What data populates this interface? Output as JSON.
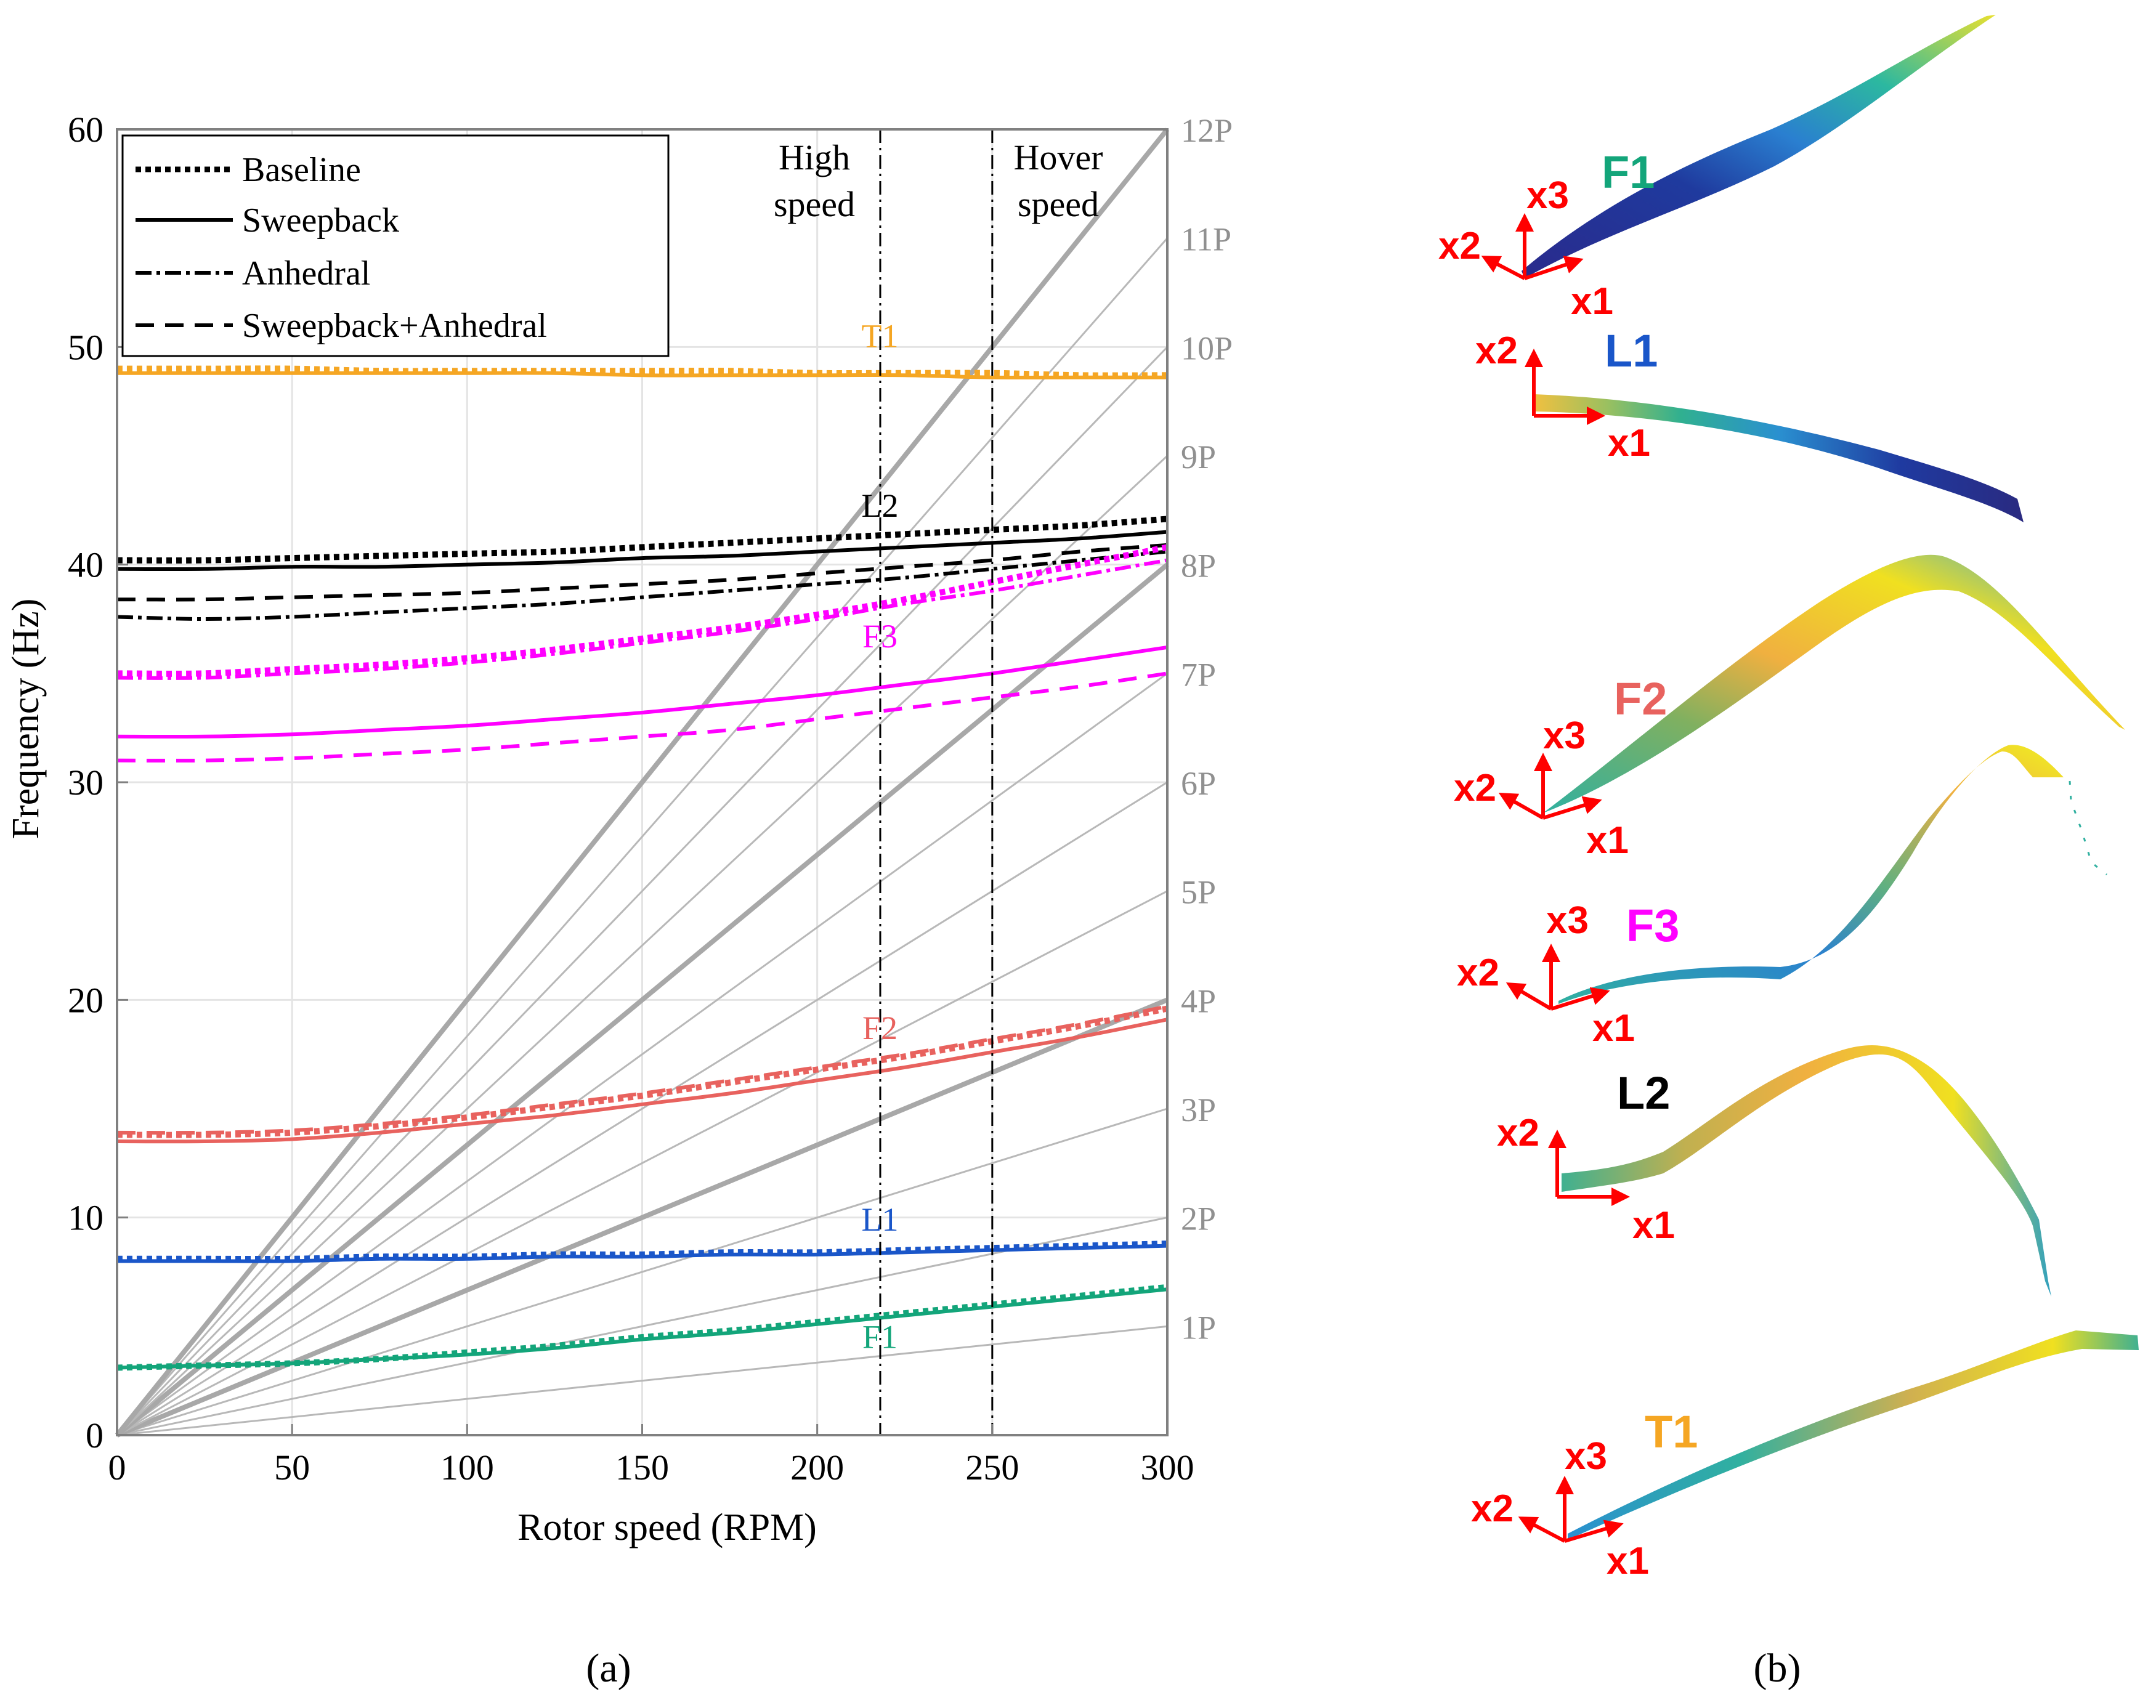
{
  "chart_data": {
    "type": "line",
    "xlabel": "Rotor speed (RPM)",
    "ylabel": "Frequency (Hz)",
    "xlim": [
      0,
      300
    ],
    "ylim": [
      0,
      60
    ],
    "xticks": [
      0,
      50,
      100,
      150,
      200,
      250,
      300
    ],
    "yticks": [
      0,
      10,
      20,
      30,
      40,
      50,
      60
    ],
    "grid": true,
    "legend_position": "top-left",
    "legend": [
      {
        "name": "Baseline",
        "style": "dotted"
      },
      {
        "name": "Sweepback",
        "style": "solid"
      },
      {
        "name": "Anhedral",
        "style": "dashdot"
      },
      {
        "name": "Sweepback+Anhedral",
        "style": "dashed"
      }
    ],
    "per_rev_labels": [
      "1P",
      "2P",
      "3P",
      "4P",
      "5P",
      "6P",
      "7P",
      "8P",
      "9P",
      "10P",
      "11P",
      "12P"
    ],
    "per_rev_bold": [
      4,
      8,
      12
    ],
    "speed_markers": [
      {
        "x": 218,
        "label_line1": "High",
        "label_line2": "speed"
      },
      {
        "x": 250,
        "label_line1": "Hover",
        "label_line2": "speed"
      }
    ],
    "x": [
      0,
      25,
      50,
      75,
      100,
      125,
      150,
      175,
      200,
      225,
      250,
      275,
      300
    ],
    "series": [
      {
        "name": "T1 Baseline",
        "color": "#f5a623",
        "style": "dotted",
        "values": [
          49.0,
          49.0,
          49.0,
          48.9,
          48.9,
          48.9,
          48.9,
          48.9,
          48.8,
          48.8,
          48.8,
          48.7,
          48.7
        ]
      },
      {
        "name": "T1 Sweepback",
        "color": "#f5a623",
        "style": "solid",
        "values": [
          48.8,
          48.8,
          48.8,
          48.8,
          48.8,
          48.8,
          48.7,
          48.7,
          48.7,
          48.7,
          48.6,
          48.6,
          48.6
        ]
      },
      {
        "name": "L2 Baseline",
        "color": "#000000",
        "style": "dotted",
        "values": [
          40.2,
          40.2,
          40.3,
          40.4,
          40.5,
          40.6,
          40.8,
          41.0,
          41.2,
          41.4,
          41.6,
          41.8,
          42.1
        ]
      },
      {
        "name": "L2 Sweepback",
        "color": "#000000",
        "style": "solid",
        "values": [
          39.8,
          39.8,
          39.9,
          39.9,
          40.0,
          40.1,
          40.3,
          40.4,
          40.6,
          40.8,
          41.0,
          41.2,
          41.5
        ]
      },
      {
        "name": "L2 Sweepback+Anhedral",
        "color": "#000000",
        "style": "dashed",
        "values": [
          38.4,
          38.4,
          38.5,
          38.6,
          38.7,
          38.9,
          39.1,
          39.3,
          39.6,
          39.9,
          40.2,
          40.6,
          40.9
        ]
      },
      {
        "name": "L2 Anhedral",
        "color": "#000000",
        "style": "dashdot",
        "values": [
          37.6,
          37.5,
          37.6,
          37.8,
          38.0,
          38.2,
          38.5,
          38.8,
          39.1,
          39.4,
          39.8,
          40.2,
          40.6
        ]
      },
      {
        "name": "F3 Baseline",
        "color": "#ff00ff",
        "style": "dotted",
        "values": [
          35.0,
          35.0,
          35.2,
          35.4,
          35.7,
          36.1,
          36.6,
          37.1,
          37.7,
          38.4,
          39.2,
          40.0,
          40.8
        ]
      },
      {
        "name": "F3 Anhedral",
        "color": "#ff00ff",
        "style": "dashdot",
        "values": [
          34.8,
          34.8,
          35.0,
          35.2,
          35.5,
          35.9,
          36.4,
          36.9,
          37.5,
          38.2,
          38.8,
          39.5,
          40.2
        ]
      },
      {
        "name": "F3 Sweepback",
        "color": "#ff00ff",
        "style": "solid",
        "values": [
          32.1,
          32.1,
          32.2,
          32.4,
          32.6,
          32.9,
          33.2,
          33.6,
          34.0,
          34.5,
          35.0,
          35.6,
          36.2
        ]
      },
      {
        "name": "F3 Sweepback+Anhedral",
        "color": "#ff00ff",
        "style": "dashed",
        "values": [
          31.0,
          31.0,
          31.1,
          31.3,
          31.5,
          31.8,
          32.1,
          32.4,
          32.9,
          33.4,
          33.9,
          34.4,
          35.0
        ]
      },
      {
        "name": "F2 Baseline",
        "color": "#e8625e",
        "style": "dotted",
        "values": [
          13.8,
          13.8,
          13.9,
          14.2,
          14.6,
          15.1,
          15.6,
          16.2,
          16.8,
          17.4,
          18.1,
          18.8,
          19.6
        ]
      },
      {
        "name": "F2 Sweepback+Anhedral",
        "color": "#e8625e",
        "style": "dashed",
        "values": [
          13.9,
          13.9,
          14.0,
          14.3,
          14.7,
          15.2,
          15.7,
          16.3,
          16.9,
          17.5,
          18.2,
          18.9,
          19.7
        ]
      },
      {
        "name": "F2 Sweepback",
        "color": "#e8625e",
        "style": "solid",
        "values": [
          13.5,
          13.5,
          13.6,
          13.9,
          14.3,
          14.7,
          15.2,
          15.7,
          16.3,
          16.9,
          17.6,
          18.3,
          19.1
        ]
      },
      {
        "name": "L1 Baseline",
        "color": "#1a56c9",
        "style": "dotted",
        "values": [
          8.1,
          8.1,
          8.1,
          8.2,
          8.2,
          8.3,
          8.3,
          8.4,
          8.4,
          8.5,
          8.6,
          8.7,
          8.8
        ]
      },
      {
        "name": "L1 Sweepback",
        "color": "#1a56c9",
        "style": "solid",
        "values": [
          8.0,
          8.0,
          8.0,
          8.1,
          8.1,
          8.2,
          8.2,
          8.3,
          8.3,
          8.4,
          8.5,
          8.6,
          8.7
        ]
      },
      {
        "name": "F1 Baseline",
        "color": "#13a57a",
        "style": "dotted",
        "values": [
          3.1,
          3.2,
          3.3,
          3.5,
          3.8,
          4.1,
          4.5,
          4.8,
          5.2,
          5.6,
          6.0,
          6.4,
          6.8
        ]
      },
      {
        "name": "F1 Sweepback",
        "color": "#13a57a",
        "style": "solid",
        "values": [
          3.1,
          3.2,
          3.3,
          3.5,
          3.7,
          4.0,
          4.4,
          4.7,
          5.1,
          5.5,
          5.9,
          6.3,
          6.7
        ]
      }
    ],
    "mode_labels": [
      {
        "text": "T1",
        "x": 210,
        "y": 50.0,
        "color": "#f5a623"
      },
      {
        "text": "L2",
        "x": 210,
        "y": 42.2,
        "color": "#000000"
      },
      {
        "text": "F3",
        "x": 210,
        "y": 36.2,
        "color": "#ff00ff"
      },
      {
        "text": "F2",
        "x": 210,
        "y": 18.2,
        "color": "#e8625e"
      },
      {
        "text": "L1",
        "x": 210,
        "y": 9.4,
        "color": "#1a56c9"
      },
      {
        "text": "F1",
        "x": 210,
        "y": 4.0,
        "color": "#13a57a"
      }
    ],
    "subcaption": "(a)"
  },
  "mode_shapes": {
    "subcaption": "(b)",
    "shapes": [
      {
        "mode": "F1",
        "color": "#13a57a",
        "axes": [
          "x3",
          "x2",
          "x1"
        ]
      },
      {
        "mode": "L1",
        "color": "#1a56c9",
        "axes": [
          "x2",
          "x1"
        ]
      },
      {
        "mode": "F2",
        "color": "#e8625e",
        "axes": [
          "x3",
          "x2",
          "x1"
        ]
      },
      {
        "mode": "F3",
        "color": "#ff00ff",
        "axes": [
          "x3",
          "x2",
          "x1"
        ]
      },
      {
        "mode": "L2",
        "color": "#000000",
        "axes": [
          "x2",
          "x1"
        ]
      },
      {
        "mode": "T1",
        "color": "#f5a623",
        "axes": [
          "x3",
          "x2",
          "x1"
        ]
      }
    ]
  }
}
